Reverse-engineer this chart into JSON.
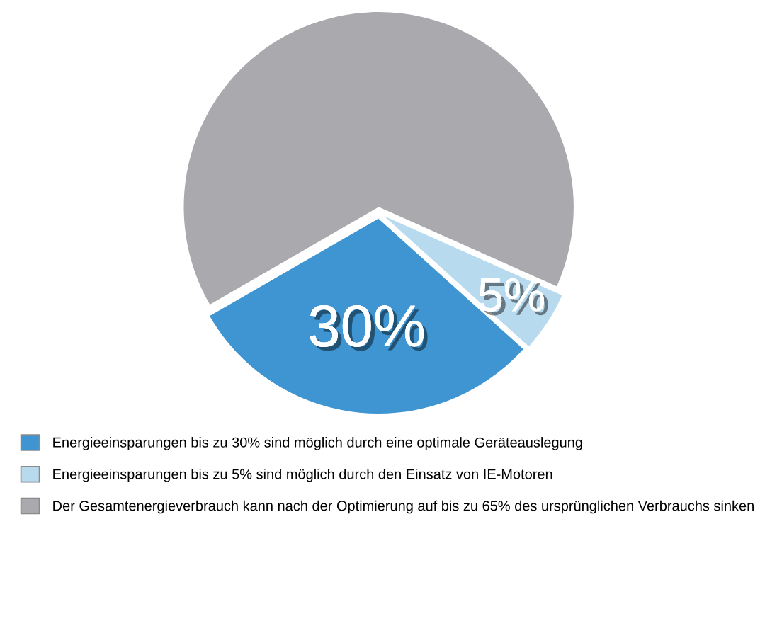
{
  "chart_data": {
    "type": "pie",
    "categories": [
      "Energieeinsparungen bis zu 30% sind möglich durch eine optimale Geräteauslegung",
      "Energieeinsparungen bis zu 5% sind möglich durch den Einsatz von IE-Motoren",
      "Der Gesamtenergieverbrauch kann nach der Optimierung auf bis zu 65% des ursprünglichen Verbrauchs sinken"
    ],
    "values": [
      30,
      5,
      65
    ],
    "colors": [
      "#3f95d2",
      "#b8daee",
      "#a9a9ae"
    ],
    "value_labels": [
      "30%",
      "5%",
      null
    ],
    "legend": "bottom"
  }
}
